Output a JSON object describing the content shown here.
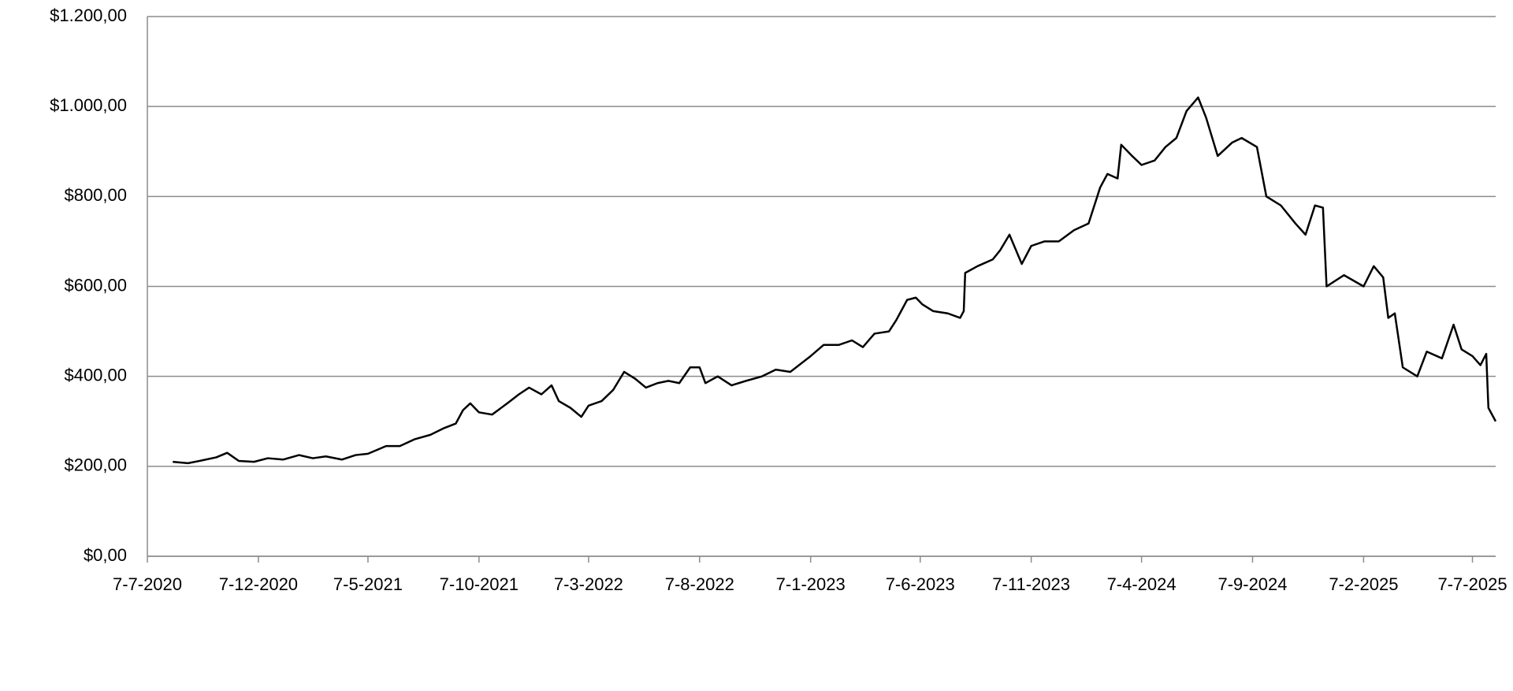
{
  "chart_data": {
    "type": "line",
    "color": "#000000",
    "grid": true,
    "x": [
      "2020-08-11",
      "2020-09-01",
      "2020-09-20",
      "2020-10-10",
      "2020-10-25",
      "2020-11-10",
      "2020-12-01",
      "2020-12-20",
      "2021-01-10",
      "2021-02-01",
      "2021-02-20",
      "2021-03-10",
      "2021-04-01",
      "2021-04-20",
      "2021-05-07",
      "2021-06-01",
      "2021-06-20",
      "2021-07-10",
      "2021-08-01",
      "2021-08-20",
      "2021-09-05",
      "2021-09-15",
      "2021-09-25",
      "2021-10-07",
      "2021-10-25",
      "2021-11-15",
      "2021-12-01",
      "2021-12-15",
      "2022-01-01",
      "2022-01-15",
      "2022-01-25",
      "2022-02-10",
      "2022-02-25",
      "2022-03-07",
      "2022-03-25",
      "2022-04-10",
      "2022-04-25",
      "2022-05-10",
      "2022-05-25",
      "2022-06-10",
      "2022-06-25",
      "2022-07-10",
      "2022-07-25",
      "2022-08-07",
      "2022-08-15",
      "2022-09-01",
      "2022-09-20",
      "2022-10-10",
      "2022-11-01",
      "2022-11-20",
      "2022-12-10",
      "2023-01-07",
      "2023-01-25",
      "2023-02-15",
      "2023-03-05",
      "2023-03-20",
      "2023-04-05",
      "2023-04-25",
      "2023-05-05",
      "2023-05-20",
      "2023-06-01",
      "2023-06-10",
      "2023-06-25",
      "2023-07-15",
      "2023-08-01",
      "2023-08-06",
      "2023-08-08",
      "2023-08-25",
      "2023-09-15",
      "2023-09-25",
      "2023-10-08",
      "2023-10-25",
      "2023-11-07",
      "2023-11-25",
      "2023-12-15",
      "2024-01-05",
      "2024-01-25",
      "2024-02-10",
      "2024-02-20",
      "2024-03-05",
      "2024-03-10",
      "2024-03-25",
      "2024-04-07",
      "2024-04-25",
      "2024-05-10",
      "2024-05-25",
      "2024-06-08",
      "2024-06-24",
      "2024-07-05",
      "2024-07-21",
      "2024-08-10",
      "2024-08-23",
      "2024-09-13",
      "2024-09-26",
      "2024-10-16",
      "2024-11-05",
      "2024-11-19",
      "2024-12-02",
      "2024-12-13",
      "2024-12-18",
      "2025-01-11",
      "2025-02-07",
      "2025-02-21",
      "2025-03-06",
      "2025-03-13",
      "2025-03-22",
      "2025-04-02",
      "2025-04-22",
      "2025-05-05",
      "2025-05-26",
      "2025-06-11",
      "2025-06-22",
      "2025-07-07",
      "2025-07-18",
      "2025-07-26",
      "2025-07-29",
      "2025-08-08"
    ],
    "values": [
      210,
      207,
      213,
      220,
      230,
      212,
      210,
      218,
      215,
      225,
      218,
      222,
      215,
      225,
      228,
      245,
      245,
      260,
      270,
      285,
      295,
      325,
      340,
      320,
      315,
      340,
      360,
      375,
      360,
      380,
      345,
      330,
      310,
      335,
      345,
      370,
      410,
      395,
      375,
      385,
      390,
      385,
      420,
      420,
      385,
      400,
      380,
      390,
      400,
      415,
      410,
      445,
      470,
      470,
      480,
      465,
      495,
      500,
      525,
      570,
      575,
      560,
      545,
      540,
      530,
      545,
      630,
      645,
      660,
      680,
      715,
      650,
      690,
      700,
      700,
      725,
      740,
      820,
      850,
      840,
      915,
      890,
      870,
      880,
      910,
      930,
      990,
      1020,
      975,
      890,
      920,
      930,
      910,
      800,
      780,
      740,
      715,
      780,
      775,
      600,
      625,
      600,
      645,
      620,
      530,
      540,
      420,
      400,
      455,
      440,
      515,
      460,
      445,
      425,
      450,
      330,
      300
    ],
    "xlim": [
      "2020-07-07",
      "2025-08-08"
    ],
    "xticks": [
      {
        "value": "2020-07-07",
        "label": "7-7-2020"
      },
      {
        "value": "2020-12-07",
        "label": "7-12-2020"
      },
      {
        "value": "2021-05-07",
        "label": "7-5-2021"
      },
      {
        "value": "2021-10-07",
        "label": "7-10-2021"
      },
      {
        "value": "2022-03-07",
        "label": "7-3-2022"
      },
      {
        "value": "2022-08-07",
        "label": "7-8-2022"
      },
      {
        "value": "2023-01-07",
        "label": "7-1-2023"
      },
      {
        "value": "2023-06-07",
        "label": "7-6-2023"
      },
      {
        "value": "2023-11-07",
        "label": "7-11-2023"
      },
      {
        "value": "2024-04-07",
        "label": "7-4-2024"
      },
      {
        "value": "2024-09-07",
        "label": "7-9-2024"
      },
      {
        "value": "2025-02-07",
        "label": "7-2-2025"
      },
      {
        "value": "2025-07-07",
        "label": "7-7-2025"
      }
    ],
    "ylim": [
      0,
      1200
    ],
    "yticks": [
      {
        "value": 0,
        "label": "$0,00"
      },
      {
        "value": 200,
        "label": "$200,00"
      },
      {
        "value": 400,
        "label": "$400,00"
      },
      {
        "value": 600,
        "label": "$600,00"
      },
      {
        "value": 800,
        "label": "$800,00"
      },
      {
        "value": 1000,
        "label": "$1.000,00"
      },
      {
        "value": 1200,
        "label": "$1.200,00"
      }
    ]
  }
}
